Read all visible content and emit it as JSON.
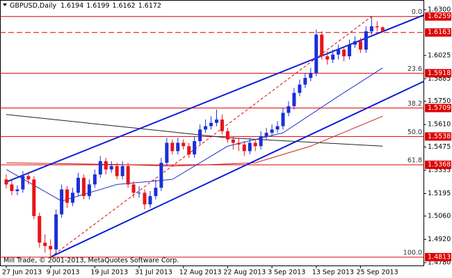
{
  "chart_data": {
    "type": "candlestick",
    "symbol": "GBPUSD,Daily",
    "footer": "Mill Trade, © 2001-2013, MetaQuotes Software Corp.",
    "categories": [
      "27 Jun 2013",
      null,
      null,
      null,
      null,
      null,
      null,
      null,
      "9 Jul 2013",
      null,
      null,
      null,
      null,
      null,
      null,
      null,
      "19 Jul 2013",
      null,
      null,
      null,
      null,
      null,
      null,
      null,
      "31 Jul 2013",
      null,
      null,
      null,
      null,
      null,
      null,
      null,
      "12 Aug 2013",
      null,
      null,
      null,
      null,
      null,
      null,
      null,
      "22 Aug 2013",
      null,
      null,
      null,
      null,
      null,
      null,
      null,
      "3 Sep 2013",
      null,
      null,
      null,
      null,
      null,
      null,
      null,
      "13 Sep 2013",
      null,
      null,
      null,
      null,
      null,
      null,
      null,
      "25 Sep 2013",
      null,
      null,
      null,
      null
    ],
    "open": [
      1.528,
      1.525,
      1.521,
      1.522,
      1.53,
      1.528,
      1.506,
      1.49,
      1.488,
      1.486,
      1.507,
      1.522,
      1.514,
      1.52,
      1.529,
      1.518,
      1.525,
      1.531,
      1.539,
      1.534,
      1.536,
      1.53,
      1.536,
      1.525,
      1.52,
      1.52,
      1.513,
      1.518,
      1.523,
      1.538,
      1.55,
      1.545,
      1.55,
      1.548,
      1.543,
      1.551,
      1.558,
      1.56,
      1.562,
      1.564,
      1.557,
      1.552,
      1.55,
      1.549,
      1.545,
      1.55,
      1.548,
      1.554,
      1.556,
      1.558,
      1.56,
      1.568,
      1.572,
      1.58,
      1.585,
      1.589,
      1.592,
      1.615,
      1.602,
      1.6,
      1.603,
      1.606,
      1.602,
      1.609,
      1.611,
      1.606,
      1.617,
      1.62,
      1.6194
    ],
    "high": [
      1.531,
      1.5275,
      1.5245,
      1.533,
      1.5325,
      1.53,
      1.508,
      1.495,
      1.492,
      1.51,
      1.525,
      1.524,
      1.523,
      1.532,
      1.531,
      1.528,
      1.534,
      1.542,
      1.541,
      1.539,
      1.538,
      1.539,
      1.538,
      1.527,
      1.524,
      1.522,
      1.521,
      1.528,
      1.541,
      1.553,
      1.552,
      1.553,
      1.552,
      1.55,
      1.554,
      1.561,
      1.564,
      1.566,
      1.57,
      1.567,
      1.559,
      1.554,
      1.553,
      1.551,
      1.553,
      1.552,
      1.557,
      1.559,
      1.561,
      1.563,
      1.571,
      1.575,
      1.583,
      1.588,
      1.592,
      1.595,
      1.618,
      1.617,
      1.605,
      1.606,
      1.609,
      1.608,
      1.612,
      1.614,
      1.613,
      1.62,
      1.6259,
      1.623,
      1.6199
    ],
    "low": [
      1.5225,
      1.5185,
      1.5185,
      1.52,
      1.525,
      1.504,
      1.487,
      1.484,
      1.4813,
      1.484,
      1.505,
      1.511,
      1.512,
      1.518,
      1.516,
      1.516,
      1.523,
      1.529,
      1.531,
      1.532,
      1.528,
      1.528,
      1.523,
      1.517,
      1.517,
      1.51,
      1.511,
      1.516,
      1.521,
      1.536,
      1.543,
      1.543,
      1.546,
      1.541,
      1.541,
      1.549,
      1.556,
      1.558,
      1.56,
      1.555,
      1.55,
      1.546,
      1.545,
      1.542,
      1.543,
      1.545,
      1.546,
      1.552,
      1.554,
      1.556,
      1.558,
      1.566,
      1.57,
      1.578,
      1.583,
      1.587,
      1.59,
      1.6,
      1.597,
      1.598,
      1.6,
      1.599,
      1.6,
      1.607,
      1.604,
      1.604,
      1.615,
      1.617,
      1.6162
    ],
    "close": [
      1.525,
      1.521,
      1.522,
      1.53,
      1.528,
      1.506,
      1.49,
      1.488,
      1.486,
      1.507,
      1.522,
      1.514,
      1.52,
      1.529,
      1.518,
      1.525,
      1.531,
      1.539,
      1.534,
      1.536,
      1.53,
      1.536,
      1.525,
      1.52,
      1.52,
      1.513,
      1.518,
      1.523,
      1.538,
      1.55,
      1.545,
      1.55,
      1.548,
      1.543,
      1.551,
      1.558,
      1.56,
      1.562,
      1.564,
      1.557,
      1.552,
      1.55,
      1.549,
      1.545,
      1.55,
      1.548,
      1.554,
      1.556,
      1.558,
      1.56,
      1.568,
      1.572,
      1.58,
      1.585,
      1.589,
      1.592,
      1.615,
      1.602,
      1.6,
      1.603,
      1.606,
      1.602,
      1.609,
      1.611,
      1.606,
      1.617,
      1.62,
      1.6194,
      1.6172
    ],
    "up_color": "#1a2fd8",
    "down_color": "#e8141a",
    "ylim": [
      1.4763,
      1.6358
    ],
    "yticks": [
      {
        "value": 1.63,
        "label": "1.6300"
      },
      {
        "value": 1.6025,
        "label": "1.6025"
      },
      {
        "value": 1.5885,
        "label": "1.5885"
      },
      {
        "value": 1.575,
        "label": "1.5750"
      },
      {
        "value": 1.561,
        "label": "1.5610"
      },
      {
        "value": 1.5475,
        "label": "1.5475"
      },
      {
        "value": 1.5335,
        "label": "1.5335"
      },
      {
        "value": 1.5195,
        "label": "1.5195"
      },
      {
        "value": 1.506,
        "label": "1.5060"
      },
      {
        "value": 1.492,
        "label": "1.4920"
      },
      {
        "value": 1.478,
        "label": "1.4780"
      }
    ],
    "fib_color": "#dd0000",
    "fib_levels": [
      {
        "name": "0.0",
        "price": 1.6259
      },
      {
        "name": "23.6",
        "price": 1.5918
      },
      {
        "name": "38.2",
        "price": 1.5709
      },
      {
        "name": "50.0",
        "price": 1.5538
      },
      {
        "name": "61.8",
        "price": 1.5368
      },
      {
        "name": "100.0",
        "price": 1.4813
      }
    ],
    "hlines": [
      {
        "price": 1.6163,
        "color": "#dd0000",
        "style": "dashed"
      }
    ],
    "trendlines": [
      {
        "x": [
          0,
          76
        ],
        "y": [
          1.5265,
          1.6275
        ],
        "color": "#0b1fd8",
        "width": 2,
        "style": "solid"
      },
      {
        "x": [
          8,
          76
        ],
        "y": [
          1.4814,
          1.5878
        ],
        "color": "#0b1fd8",
        "width": 2,
        "style": "solid"
      },
      {
        "x": [
          8,
          66
        ],
        "y": [
          1.4813,
          1.6259
        ],
        "color": "#dd0000",
        "width": 1,
        "style": "dashed"
      }
    ],
    "moving_averages": [
      {
        "x": [
          0,
          20,
          40,
          68
        ],
        "y": [
          1.567,
          1.56,
          1.553,
          1.548
        ],
        "color": "#222222"
      },
      {
        "x": [
          0,
          20,
          30,
          45,
          55,
          68
        ],
        "y": [
          1.538,
          1.537,
          1.536,
          1.538,
          1.548,
          1.566
        ],
        "color": "#cc2222"
      },
      {
        "x": [
          0,
          10,
          20,
          30,
          40,
          50,
          60,
          68
        ],
        "y": [
          1.534,
          1.515,
          1.525,
          1.528,
          1.548,
          1.556,
          1.578,
          1.595
        ],
        "color": "#2233cc"
      }
    ]
  }
}
